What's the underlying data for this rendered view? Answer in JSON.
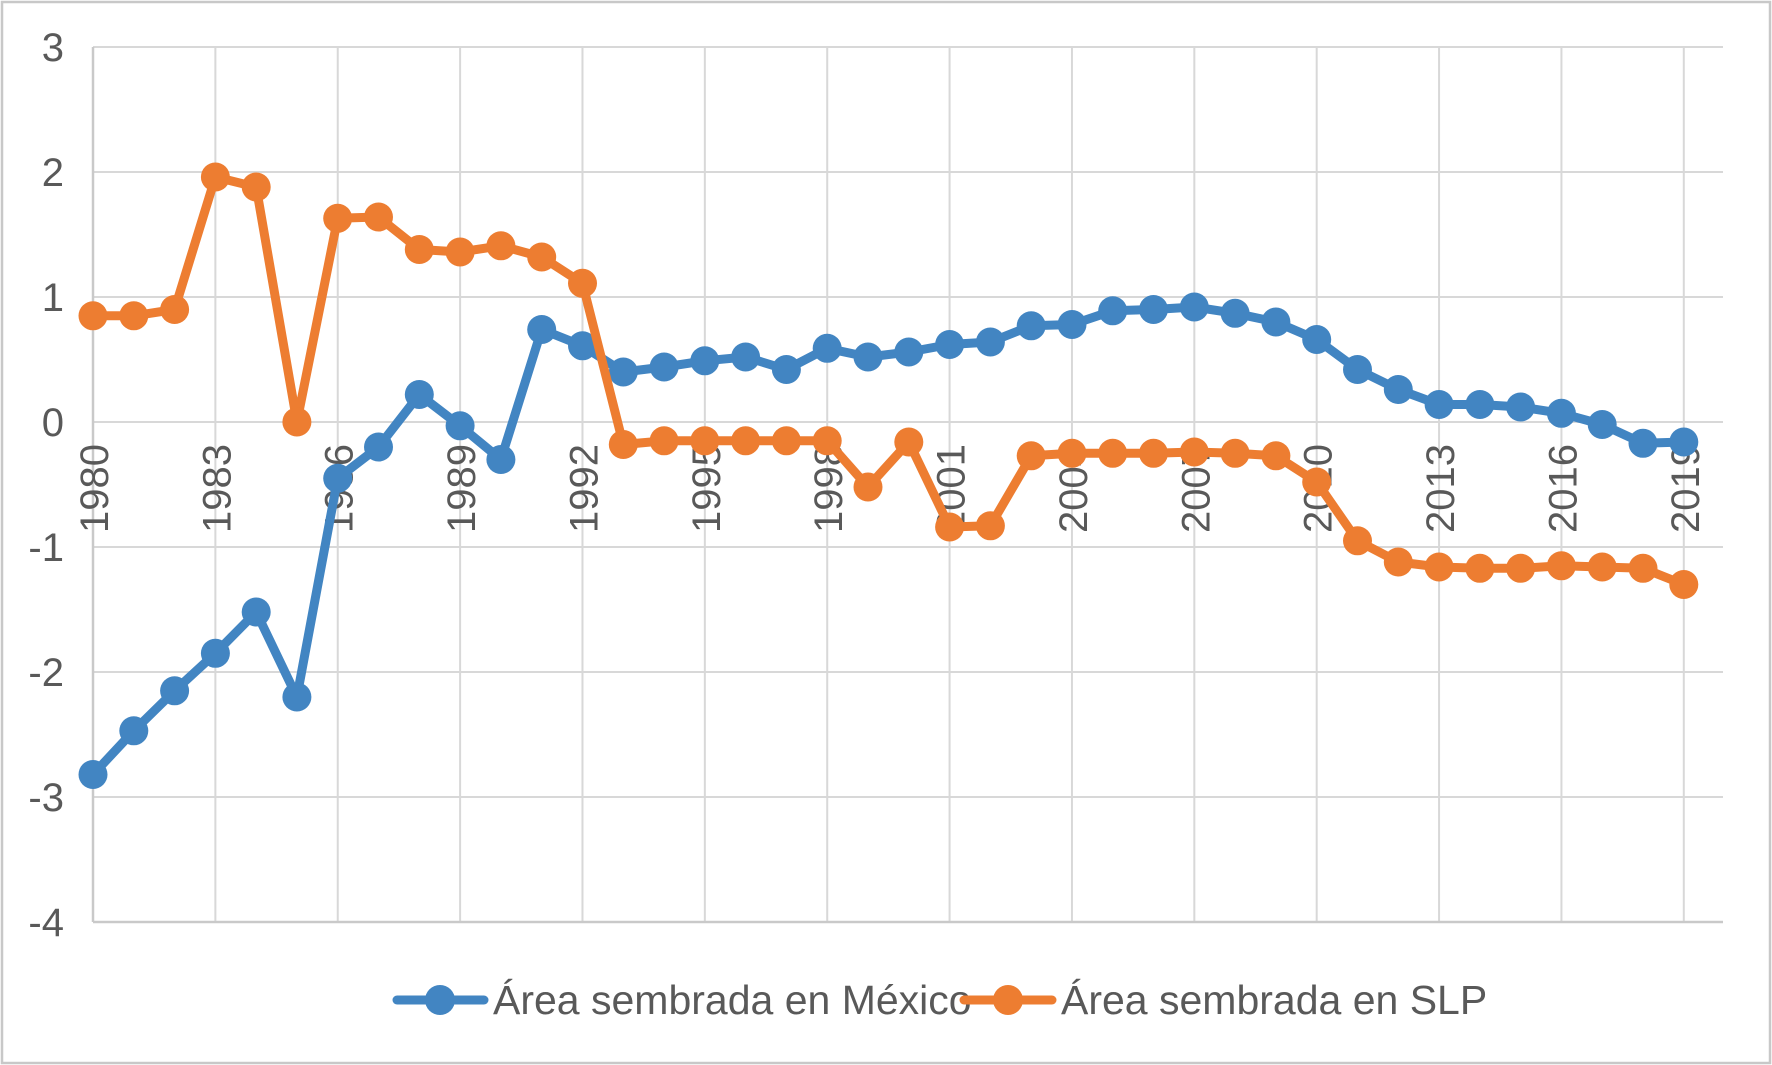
{
  "chart_data": {
    "type": "line",
    "title": "",
    "xlabel": "",
    "ylabel": "",
    "grid": true,
    "legend_position": "bottom",
    "marker": "circle",
    "ylim": [
      -4,
      3
    ],
    "y_ticks": [
      3,
      2,
      1,
      0,
      -1,
      -2,
      -3,
      -4
    ],
    "x_tick_labels": [
      1980,
      1983,
      1986,
      1989,
      1992,
      1995,
      1998,
      2001,
      2004,
      2007,
      2010,
      2013,
      2016,
      2019
    ],
    "x": [
      1980,
      1981,
      1982,
      1983,
      1984,
      1985,
      1986,
      1987,
      1988,
      1989,
      1990,
      1991,
      1992,
      1993,
      1994,
      1995,
      1996,
      1997,
      1998,
      1999,
      2000,
      2001,
      2002,
      2003,
      2004,
      2005,
      2006,
      2007,
      2008,
      2009,
      2010,
      2011,
      2012,
      2013,
      2014,
      2015,
      2016,
      2017,
      2018,
      2019
    ],
    "series": [
      {
        "name": "Área sembrada en México",
        "color": "#4285C2",
        "values": [
          -2.82,
          -2.47,
          -2.15,
          -1.85,
          -1.52,
          -2.2,
          -0.45,
          -0.2,
          0.22,
          -0.03,
          -0.3,
          0.74,
          0.61,
          0.4,
          0.44,
          0.49,
          0.52,
          0.42,
          0.59,
          0.52,
          0.56,
          0.62,
          0.64,
          0.77,
          0.78,
          0.89,
          0.9,
          0.92,
          0.87,
          0.8,
          0.66,
          0.42,
          0.26,
          0.14,
          0.14,
          0.12,
          0.07,
          -0.02,
          -0.17,
          -0.16
        ]
      },
      {
        "name": "Área sembrada en SLP",
        "color": "#ED7D31",
        "values": [
          0.85,
          0.85,
          0.9,
          1.96,
          1.88,
          0.0,
          1.63,
          1.64,
          1.38,
          1.36,
          1.41,
          1.32,
          1.11,
          -0.18,
          -0.15,
          -0.15,
          -0.15,
          -0.15,
          -0.15,
          -0.52,
          -0.16,
          -0.84,
          -0.83,
          -0.27,
          -0.25,
          -0.25,
          -0.25,
          -0.24,
          -0.25,
          -0.27,
          -0.48,
          -0.95,
          -1.12,
          -1.16,
          -1.17,
          -1.17,
          -1.15,
          -1.16,
          -1.17,
          -1.3
        ]
      }
    ],
    "colors": {
      "gridline": "#D8D8D8",
      "axis_text": "#595959",
      "background": "#FFFFFF",
      "border": "#C8C8C8"
    }
  }
}
